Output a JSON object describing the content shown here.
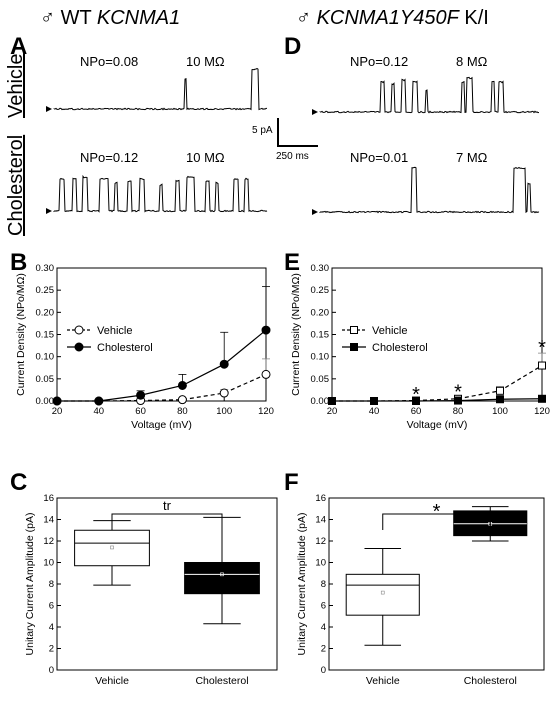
{
  "headers": {
    "left_symbol": "♂",
    "left_prefix": "WT",
    "left_gene": "KCNMA1",
    "right_symbol": "♂",
    "right_gene": "KCNMA1Y450F",
    "right_suffix": "K/I"
  },
  "panels": {
    "A": "A",
    "B": "B",
    "C": "C",
    "D": "D",
    "E": "E",
    "F": "F"
  },
  "traces": {
    "row_vehicle": "Vehicle",
    "row_cholesterol": "Cholesterol",
    "A_vehicle": {
      "npo": "NPo=0.08",
      "res": "10 MΩ"
    },
    "A_cholesterol": {
      "npo": "NPo=0.12",
      "res": "10 MΩ"
    },
    "D_vehicle": {
      "npo": "NPo=0.12",
      "res": "8 MΩ"
    },
    "D_cholesterol": {
      "npo": "NPo=0.01",
      "res": "7 MΩ"
    },
    "scale_y": "5 pA",
    "scale_x": "250 ms"
  },
  "chart_data": [
    {
      "panel": "B",
      "type": "line",
      "xlabel": "Voltage (mV)",
      "ylabel": "Current Density (NPo/MΩ)",
      "x": [
        20,
        40,
        60,
        80,
        100,
        120
      ],
      "xlim": [
        20,
        120
      ],
      "ylim": [
        0,
        0.3
      ],
      "xticks": [
        "20",
        "40",
        "60",
        "80",
        "100",
        "120"
      ],
      "yticks": [
        "0.00",
        "0.05",
        "0.10",
        "0.15",
        "0.20",
        "0.25",
        "0.30"
      ],
      "legend_position": "top-left",
      "series": [
        {
          "name": "Vehicle",
          "style": "dashed-open-circle",
          "values": [
            0.0,
            0.0,
            0.001,
            0.003,
            0.018,
            0.06
          ],
          "err": [
            0,
            0,
            0.002,
            0.004,
            0.008,
            0.035
          ]
        },
        {
          "name": "Cholesterol",
          "style": "solid-filled-circle",
          "values": [
            0.0,
            0.0,
            0.013,
            0.035,
            0.083,
            0.16
          ],
          "err": [
            0,
            0,
            0.01,
            0.025,
            0.072,
            0.098
          ]
        }
      ]
    },
    {
      "panel": "E",
      "type": "line",
      "xlabel": "Voltage (mV)",
      "ylabel": "Current Density (NPo/MΩ)",
      "x": [
        20,
        40,
        60,
        80,
        100,
        120
      ],
      "xlim": [
        20,
        120
      ],
      "ylim": [
        0,
        0.3
      ],
      "xticks": [
        "20",
        "40",
        "60",
        "80",
        "100",
        "120"
      ],
      "yticks": [
        "0.00",
        "0.05",
        "0.10",
        "0.15",
        "0.20",
        "0.25",
        "0.30"
      ],
      "legend_position": "top-left",
      "series": [
        {
          "name": "Vehicle",
          "style": "dashed-open-square",
          "values": [
            0.0,
            0.0,
            0.001,
            0.005,
            0.023,
            0.08
          ],
          "err": [
            0,
            0,
            0.001,
            0.003,
            0.01,
            0.028
          ]
        },
        {
          "name": "Cholesterol",
          "style": "solid-filled-square",
          "values": [
            0.0,
            0.0,
            0.0,
            0.001,
            0.004,
            0.005
          ],
          "err": [
            0,
            0,
            0,
            0,
            0,
            0
          ]
        }
      ],
      "significance": [
        {
          "x": 60,
          "label": "*"
        },
        {
          "x": 80,
          "label": "*"
        },
        {
          "x": 120,
          "label": "*"
        }
      ]
    },
    {
      "panel": "C",
      "type": "box",
      "ylabel": "Unitary Current Amplitude (pA)",
      "ylim": [
        0,
        16
      ],
      "yticks": [
        "0",
        "2",
        "4",
        "6",
        "8",
        "10",
        "12",
        "14",
        "16"
      ],
      "categories": [
        "Vehicle",
        "Cholesterol"
      ],
      "boxes": [
        {
          "min": 7.9,
          "q1": 9.7,
          "median": 11.8,
          "q3": 13.0,
          "max": 13.9,
          "mean": 11.4,
          "fill": "#ffffff"
        },
        {
          "min": 4.3,
          "q1": 7.1,
          "median": 8.9,
          "q3": 10.0,
          "max": 14.2,
          "mean": 8.9,
          "fill": "#000000"
        }
      ],
      "bracket_label": "tr"
    },
    {
      "panel": "F",
      "type": "box",
      "ylabel": "Unitary Current Amplitude (pA)",
      "ylim": [
        0,
        16
      ],
      "yticks": [
        "0",
        "2",
        "4",
        "6",
        "8",
        "10",
        "12",
        "14",
        "16"
      ],
      "categories": [
        "Vehicle",
        "Cholesterol"
      ],
      "boxes": [
        {
          "min": 2.3,
          "q1": 5.1,
          "median": 7.9,
          "q3": 8.9,
          "max": 11.3,
          "mean": 7.2,
          "fill": "#ffffff"
        },
        {
          "min": 12.0,
          "q1": 12.5,
          "median": 13.6,
          "q3": 14.8,
          "max": 15.2,
          "mean": 13.6,
          "fill": "#000000"
        }
      ],
      "bracket_label": "*"
    }
  ]
}
